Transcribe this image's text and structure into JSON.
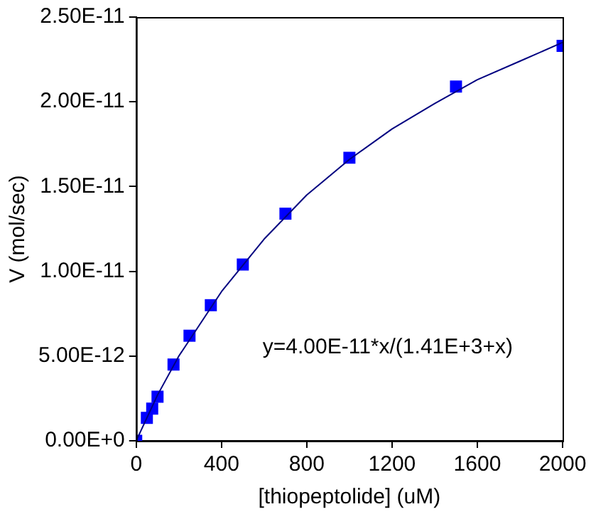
{
  "chart_data": {
    "type": "scatter",
    "xlabel": "[thiopeptolide] (uM)",
    "ylabel": "V (mol/sec)",
    "xlim": [
      0,
      2000
    ],
    "xticks": [
      0,
      400,
      800,
      1200,
      1600,
      2000
    ],
    "ylim": [
      0,
      2.5e-11
    ],
    "yticks": [
      {
        "value": 0,
        "label": "0.00E+0"
      },
      {
        "value": 5e-12,
        "label": "5.00E-12"
      },
      {
        "value": 1e-11,
        "label": "1.00E-11"
      },
      {
        "value": 1.5e-11,
        "label": "1.50E-11"
      },
      {
        "value": 2e-11,
        "label": "2.00E-11"
      },
      {
        "value": 2.5e-11,
        "label": "2.50E-11"
      }
    ],
    "grid": false,
    "legend": false,
    "marker": "square",
    "annotations": [
      "y=4.00E-11*x/(1.41E+3+x)"
    ],
    "series": [
      {
        "type": "line",
        "color": "#000080",
        "marker": "none",
        "x": [
          0,
          100,
          200,
          400,
          600,
          800,
          1000,
          1200,
          1400,
          1600,
          1800,
          2000
        ],
        "values": [
          0,
          2.7e-12,
          5e-12,
          8.8e-12,
          1.19e-11,
          1.45e-11,
          1.66e-11,
          1.84e-11,
          1.99e-11,
          2.13e-11,
          2.24e-11,
          2.35e-11
        ]
      },
      {
        "type": "scatter",
        "color": "#0000ff",
        "x": [
          0,
          50,
          75,
          100,
          175,
          250,
          350,
          500,
          700,
          1000,
          1500,
          2000
        ],
        "values": [
          0,
          1.35e-12,
          1.9e-12,
          2.6e-12,
          4.5e-12,
          6.2e-12,
          8e-12,
          1.04e-11,
          1.34e-11,
          1.67e-11,
          2.09e-11,
          2.33e-11
        ]
      }
    ]
  }
}
